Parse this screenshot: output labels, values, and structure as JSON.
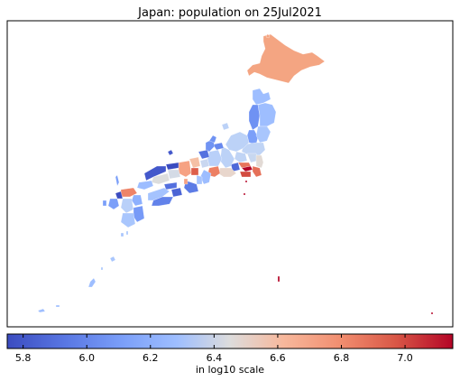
{
  "title": "Japan: population on 25Jul2021",
  "colorbar": {
    "label": "in log10 scale",
    "colormap": "coolwarm",
    "range": [
      5.75,
      7.15
    ],
    "ticks": [
      "5.8",
      "6.0",
      "6.2",
      "6.4",
      "6.6",
      "6.8",
      "7.0"
    ],
    "tick_values": [
      5.8,
      6.0,
      6.2,
      6.4,
      6.6,
      6.8,
      7.0
    ]
  },
  "colors": {
    "low": "#3b4cc0",
    "mid": "#dddcdc",
    "high": "#b40426",
    "hokkaido": "#f4a582",
    "tokyo": "#b40426"
  }
}
